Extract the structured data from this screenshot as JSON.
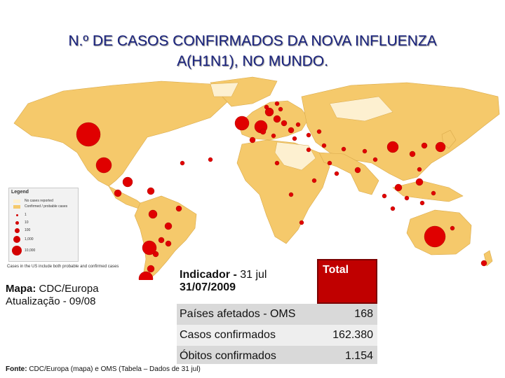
{
  "slide": {
    "title_line1": "N.º DE CASOS CONFIRMADOS DA NOVA INFLUENZA",
    "title_line2": "A(H1N1), NO MUNDO."
  },
  "map": {
    "legend": {
      "title": "Legend",
      "no_cases_label": "No cases reported",
      "confirmed_label": "Confirmed / probable cases",
      "levels": [
        "1",
        "10",
        "100",
        "1,000",
        "10,000"
      ]
    },
    "note": "Cases in the US include both probable and confirmed cases",
    "colors": {
      "affected": "#f5c96b",
      "unaffected": "#fdf0d0",
      "case_dot": "#e00000",
      "water": "#ffffff"
    }
  },
  "credit": {
    "map_label": "Mapa:",
    "map_source": "CDC/Europa",
    "update": "Atualização - 09/08"
  },
  "table": {
    "header_label": "Indicador -",
    "header_date_inline": "31 jul",
    "header_date": "31/07/2009",
    "header_total": "Total",
    "rows": [
      {
        "label": "Países afetados - OMS",
        "value": "168"
      },
      {
        "label": "Casos confirmados",
        "value": "162.380"
      },
      {
        "label": "Óbitos confirmados",
        "value": "1.154"
      }
    ]
  },
  "footer": {
    "source_label": "Fonte:",
    "source_text": "CDC/Europa (mapa) e OMS (Tabela – Dados de 31 jul)"
  }
}
